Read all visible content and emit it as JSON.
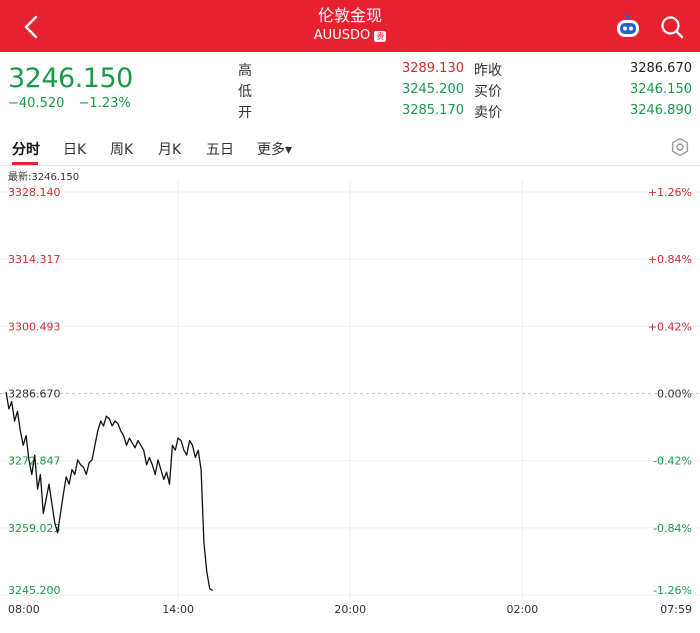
{
  "header": {
    "title": "伦敦金现",
    "subtitle": "AUUSDO",
    "badge": "贵"
  },
  "quote": {
    "last": "3246.150",
    "change": "−40.520",
    "change_pct": "−1.23%",
    "high_label": "高",
    "high": "3289.130",
    "low_label": "低",
    "low": "3245.200",
    "open_label": "开",
    "open": "3285.170",
    "prev_close_label": "昨收",
    "prev_close": "3286.670",
    "bid_label": "买价",
    "bid": "3246.150",
    "ask_label": "卖价",
    "ask": "3246.890",
    "colors": {
      "up": "#d62b2b",
      "down": "#1a9a46",
      "neutral": "#222222"
    }
  },
  "tabs": {
    "items": [
      "分时",
      "日K",
      "周K",
      "月K",
      "五日",
      "更多▾"
    ],
    "active": 0
  },
  "chart": {
    "latest_label": "最新:3246.150"
  },
  "chart_data": {
    "type": "line",
    "ylim": [
      3245.2,
      3328.14
    ],
    "prev_close": 3286.67,
    "y_ticks": [
      {
        "value": 3328.14,
        "label": "3328.140",
        "pct": "+1.26%",
        "color": "#d62b2b"
      },
      {
        "value": 3314.317,
        "label": "3314.317",
        "pct": "+0.84%",
        "color": "#d62b2b"
      },
      {
        "value": 3300.493,
        "label": "3300.493",
        "pct": "+0.42%",
        "color": "#d62b2b"
      },
      {
        "value": 3286.67,
        "label": "3286.670",
        "pct": "0.00%",
        "color": "#333333"
      },
      {
        "value": 3272.847,
        "label": "3272.847",
        "pct": "-0.42%",
        "color": "#1a9a46"
      },
      {
        "value": 3259.023,
        "label": "3259.023",
        "pct": "-0.84%",
        "color": "#1a9a46"
      },
      {
        "value": 3245.2,
        "label": "3245.200",
        "pct": "-1.26%",
        "color": "#1a9a46"
      }
    ],
    "x_ticks": [
      "08:00",
      "14:00",
      "20:00",
      "02:00",
      "07:59"
    ],
    "x_range_minutes": [
      0,
      1439
    ],
    "series": [
      {
        "x": [
          0,
          6,
          12,
          18,
          24,
          30,
          36,
          42,
          48,
          54,
          60,
          66,
          72,
          78,
          84,
          90,
          96,
          102,
          108,
          114,
          120,
          126,
          132,
          138,
          144,
          150,
          156,
          162,
          168,
          174,
          180,
          186,
          192,
          198,
          204,
          210,
          216,
          222,
          228,
          234,
          240,
          246,
          252,
          258,
          264,
          270,
          276,
          282,
          288,
          294,
          300,
          306,
          312,
          318,
          324,
          330,
          336,
          342,
          348,
          354,
          360,
          366,
          372,
          378,
          384,
          390,
          396,
          402,
          408,
          414,
          420,
          426,
          432
        ],
        "y": [
          3287.0,
          3283.5,
          3285.0,
          3281.0,
          3283.0,
          3279.0,
          3276.0,
          3278.0,
          3273.0,
          3270.0,
          3274.0,
          3267.0,
          3270.0,
          3262.0,
          3265.0,
          3268.0,
          3264.0,
          3260.0,
          3258.0,
          3262.0,
          3266.0,
          3269.5,
          3268.0,
          3271.0,
          3270.0,
          3273.0,
          3272.0,
          3271.5,
          3270.0,
          3272.5,
          3273.0,
          3276.0,
          3279.0,
          3281.0,
          3280.0,
          3282.0,
          3281.5,
          3280.0,
          3281.0,
          3280.5,
          3279.0,
          3278.0,
          3276.0,
          3277.5,
          3276.5,
          3275.5,
          3277.0,
          3276.0,
          3275.0,
          3272.0,
          3273.5,
          3272.0,
          3270.0,
          3273.0,
          3271.0,
          3269.0,
          3270.5,
          3268.0,
          3276.0,
          3275.0,
          3277.5,
          3277.0,
          3275.0,
          3274.0,
          3277.0,
          3276.0,
          3273.5,
          3275.0,
          3271.0,
          3256.0,
          3250.0,
          3246.5,
          3246.15
        ]
      }
    ]
  }
}
